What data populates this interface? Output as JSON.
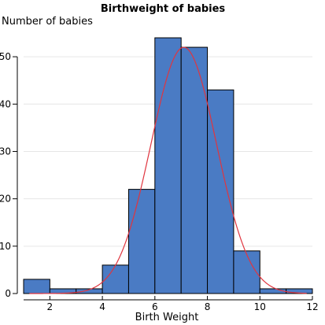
{
  "chart_data": {
    "type": "bar",
    "title": "Birthweight of babies",
    "xlabel": "Birth Weight",
    "ylabel": "Number of babies",
    "bin_edges": [
      1,
      2,
      3,
      4,
      5,
      6,
      7,
      8,
      9,
      10,
      11,
      12
    ],
    "values": [
      3,
      1,
      1,
      6,
      22,
      54,
      52,
      43,
      9,
      1,
      1
    ],
    "xlim": [
      1,
      12
    ],
    "ylim": [
      0,
      56
    ],
    "xticks": [
      2,
      4,
      6,
      8,
      10,
      12
    ],
    "yticks": [
      0,
      10,
      20,
      30,
      40,
      50
    ],
    "grid": true,
    "bar_color": "#4a7bc4",
    "normal_curve": {
      "mean": 7.1,
      "sd": 1.25,
      "peak": 52,
      "color": "#e0353f"
    }
  }
}
